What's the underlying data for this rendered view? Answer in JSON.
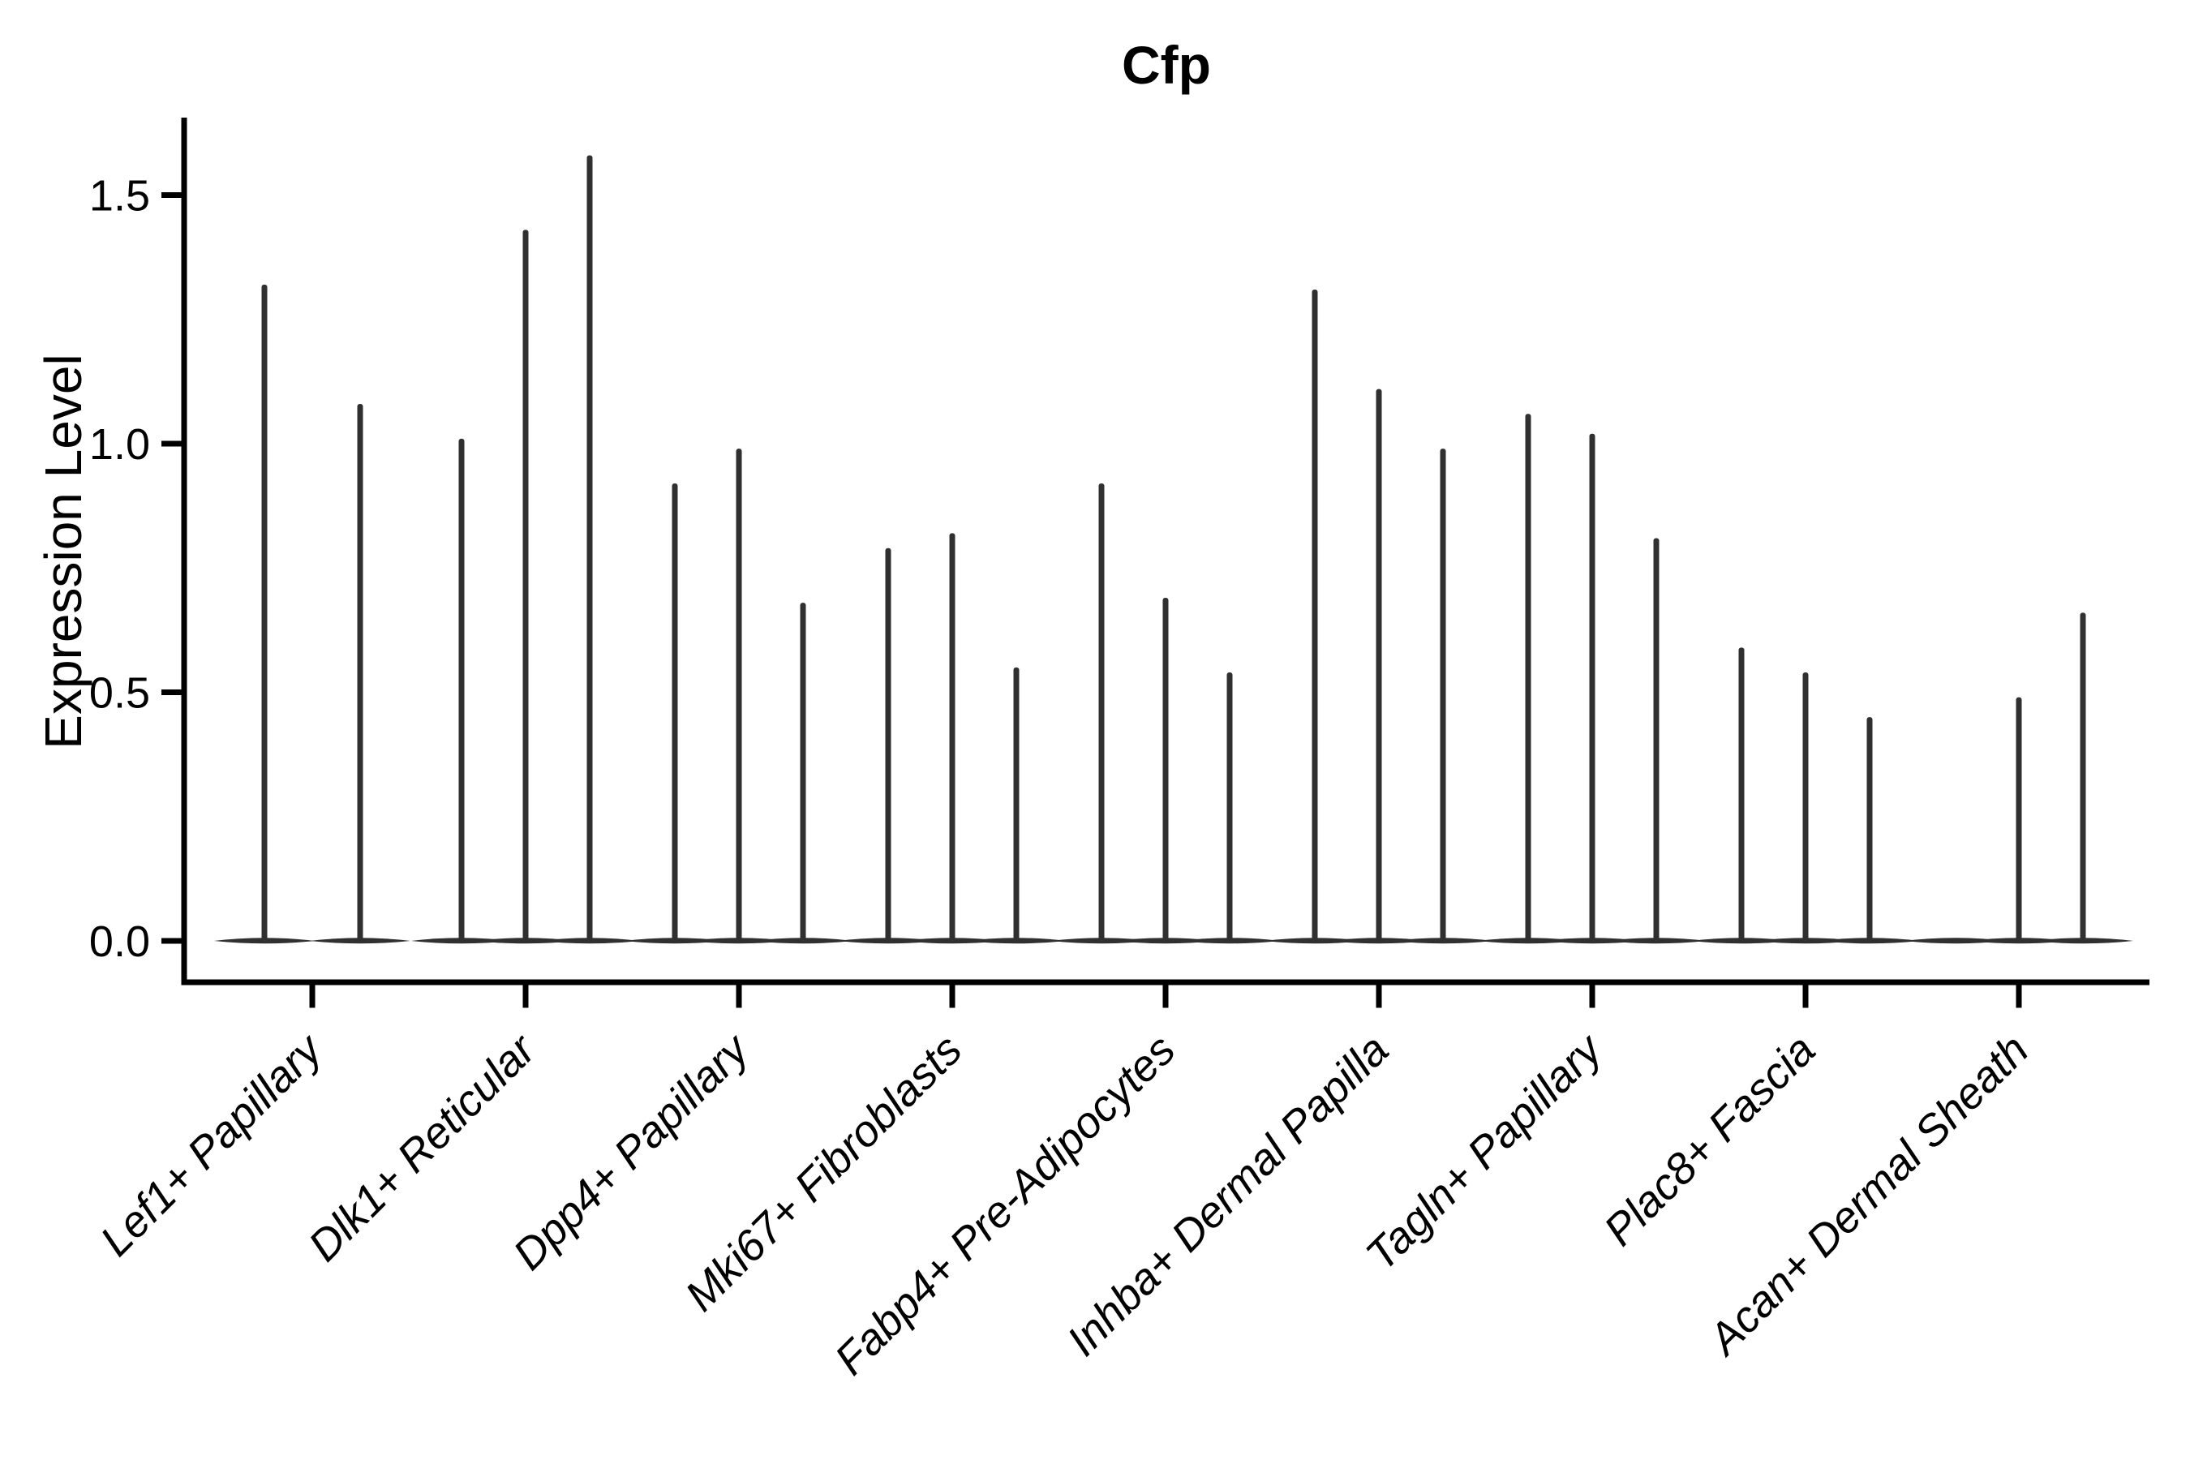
{
  "title": "Cfp",
  "axes": {
    "y_label": "Expression Level",
    "y_ticks": [
      {
        "label": "0.0",
        "value": 0.0
      },
      {
        "label": "0.5",
        "value": 0.5
      },
      {
        "label": "1.0",
        "value": 1.0
      },
      {
        "label": "1.5",
        "value": 1.5
      }
    ]
  },
  "chart_data": {
    "type": "violin",
    "title": "Cfp",
    "xlabel": "",
    "ylabel": "Expression Level",
    "ylim": [
      0,
      1.66
    ],
    "yticks": [
      0.0,
      0.5,
      1.0,
      1.5
    ],
    "grid": false,
    "legend": false,
    "categories": [
      "Lef1+ Papillary",
      "Dlk1+ Reticular",
      "Dpp4+ Papillary",
      "Mki67+ Fibroblasts",
      "Fabp4+ Pre-Adipocytes",
      "Inhba+ Dermal Papilla",
      "Tagln+ Papillary",
      "Plac8+ Fascia",
      "Acan+ Dermal Sheath"
    ],
    "series": [
      {
        "category": "Lef1+ Papillary",
        "violin_max_values": [
          1.32,
          1.08
        ]
      },
      {
        "category": "Dlk1+ Reticular",
        "violin_max_values": [
          1.01,
          1.43,
          1.58
        ]
      },
      {
        "category": "Dpp4+ Papillary",
        "violin_max_values": [
          0.92,
          0.99,
          0.68
        ]
      },
      {
        "category": "Mki67+ Fibroblasts",
        "violin_max_values": [
          0.79,
          0.82,
          0.55
        ]
      },
      {
        "category": "Fabp4+ Pre-Adipocytes",
        "violin_max_values": [
          0.92,
          0.69,
          0.54
        ]
      },
      {
        "category": "Inhba+ Dermal Papilla",
        "violin_max_values": [
          1.31,
          1.11,
          0.99
        ]
      },
      {
        "category": "Tagln+ Papillary",
        "violin_max_values": [
          1.06,
          1.02,
          0.81
        ]
      },
      {
        "category": "Plac8+ Fascia",
        "violin_max_values": [
          0.59,
          0.54,
          0.45
        ]
      },
      {
        "category": "Acan+ Dermal Sheath",
        "violin_max_values": [
          0.0,
          0.49,
          0.66
        ]
      }
    ],
    "description": "Violin plot of Cfp expression per fibroblast subtype; each category shows 2-3 narrow spike violins (max expression) with a wide flat base at zero expression."
  },
  "colors": {
    "violin": "#303030",
    "axis": "#000000",
    "text": "#000000",
    "background": "#ffffff"
  }
}
